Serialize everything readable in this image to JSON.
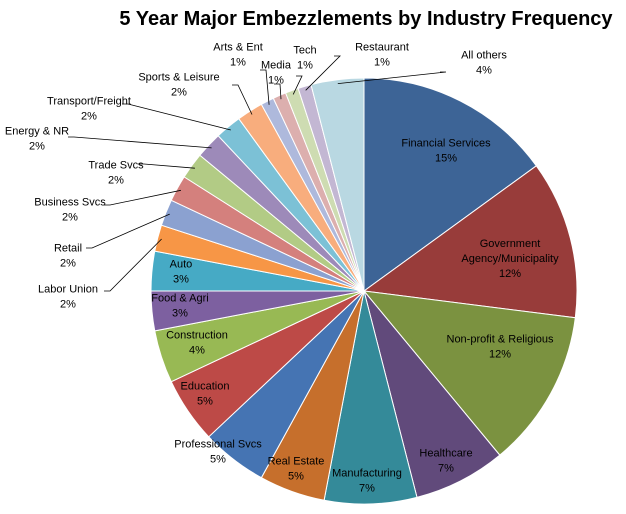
{
  "chart_data": {
    "type": "pie",
    "title": "5 Year Major Embezzlements by Industry Frequency",
    "slices": [
      {
        "label": "Financial Services",
        "value": 15,
        "pct": "15%",
        "color": "#3d6496"
      },
      {
        "label": "Government Agency/Municipality",
        "label_lines": [
          "Government",
          "Agency/Municipality"
        ],
        "value": 12,
        "pct": "12%",
        "color": "#983c3a"
      },
      {
        "label": "Non-profit & Religious",
        "value": 12,
        "pct": "12%",
        "color": "#7b9240"
      },
      {
        "label": "Healthcare",
        "value": 7,
        "pct": "7%",
        "color": "#614a7b"
      },
      {
        "label": "Manufacturing",
        "value": 7,
        "pct": "7%",
        "color": "#348a99"
      },
      {
        "label": "Real Estate",
        "value": 5,
        "pct": "5%",
        "color": "#c66f2c"
      },
      {
        "label": "Professional Svcs",
        "value": 5,
        "pct": "5%",
        "color": "#4574b3"
      },
      {
        "label": "Education",
        "value": 5,
        "pct": "5%",
        "color": "#bd4a47"
      },
      {
        "label": "Construction",
        "value": 4,
        "pct": "4%",
        "color": "#98b954"
      },
      {
        "label": "Food & Agri",
        "value": 3,
        "pct": "3%",
        "color": "#7d60a0"
      },
      {
        "label": "Auto",
        "value": 3,
        "pct": "3%",
        "color": "#46aac5"
      },
      {
        "label": "Labor Union",
        "value": 2,
        "pct": "2%",
        "color": "#f79646"
      },
      {
        "label": "Retail",
        "value": 2,
        "pct": "2%",
        "color": "#8ba1d0"
      },
      {
        "label": "Business Svcs",
        "value": 2,
        "pct": "2%",
        "color": "#d4807d"
      },
      {
        "label": "Trade Svcs",
        "value": 2,
        "pct": "2%",
        "color": "#b2cb85"
      },
      {
        "label": "Energy & NR",
        "value": 2,
        "pct": "2%",
        "color": "#9d8ab9"
      },
      {
        "label": "Transport/Freight",
        "value": 2,
        "pct": "2%",
        "color": "#7cc1d6"
      },
      {
        "label": "Sports & Leisure",
        "value": 2,
        "pct": "2%",
        "color": "#f8ad7d"
      },
      {
        "label": "Arts & Ent",
        "value": 1,
        "pct": "1%",
        "color": "#aeb9dc"
      },
      {
        "label": "Media",
        "value": 1,
        "pct": "1%",
        "color": "#dcafae"
      },
      {
        "label": "Tech",
        "value": 1,
        "pct": "1%",
        "color": "#cedcb2"
      },
      {
        "label": "Restaurant",
        "value": 1,
        "pct": "1%",
        "color": "#c3b7d3"
      },
      {
        "label": "All others",
        "value": 4,
        "pct": "4%",
        "color": "#b9d8e2"
      }
    ],
    "legend": "none",
    "labels": "category and percent, inside slices for large slices, outside with leader lines for small slices"
  }
}
